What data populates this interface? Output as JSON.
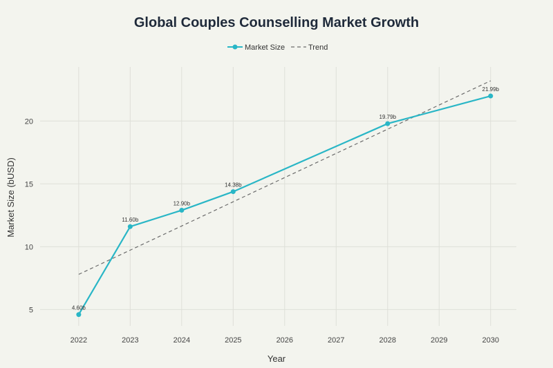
{
  "chart_data": {
    "type": "line",
    "title": "Global Couples Counselling Market Growth",
    "xlabel": "Year",
    "ylabel": "Market Size (bUSD)",
    "x": [
      2022,
      2023,
      2024,
      2025,
      2028,
      2030
    ],
    "x_ticks": [
      "2022",
      "2023",
      "2024",
      "2025",
      "2026",
      "2027",
      "2028",
      "2029",
      "2030"
    ],
    "y_ticks": [
      "5",
      "10",
      "15",
      "20"
    ],
    "xlim": [
      2021.25,
      2030.5
    ],
    "ylim": [
      3.7,
      24.3
    ],
    "grid": true,
    "legend_position": "top-center",
    "series": [
      {
        "name": "Market Size",
        "values": [
          4.6,
          11.6,
          12.9,
          14.38,
          19.79,
          21.99
        ],
        "labels": [
          "4.60b",
          "11.60b",
          "12.90b",
          "14.38b",
          "19.79b",
          "21.99b"
        ],
        "color": "#29b6c6"
      },
      {
        "name": "Trend",
        "style": "dashed",
        "x": [
          2022,
          2030
        ],
        "values": [
          7.8,
          23.2
        ],
        "color": "#6b6b6b"
      }
    ]
  }
}
